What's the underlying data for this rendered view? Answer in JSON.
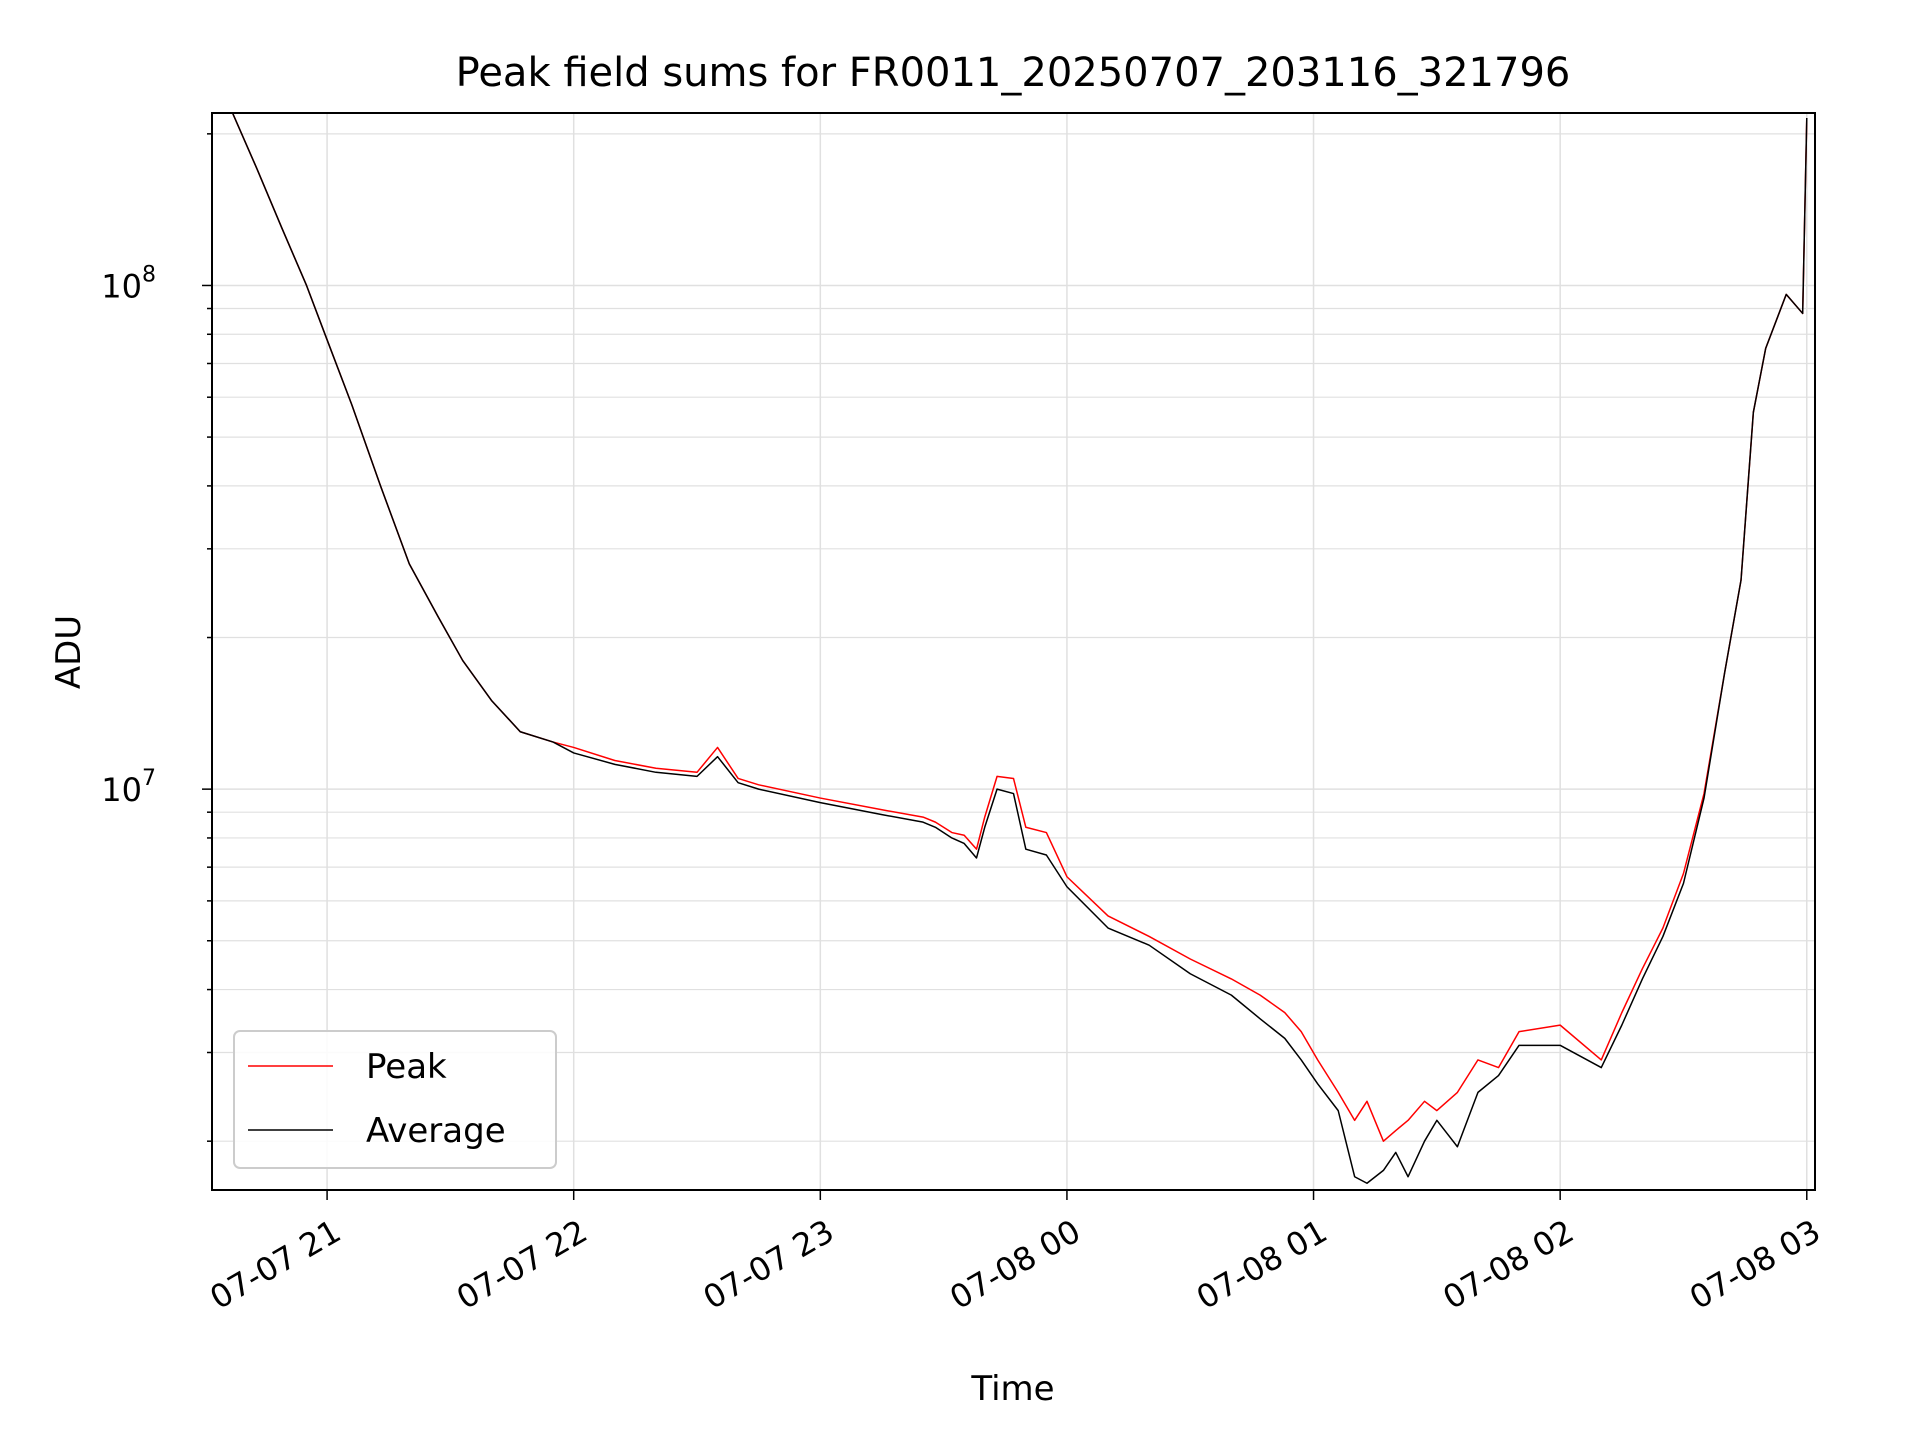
{
  "chart_data": {
    "type": "line",
    "title": "Peak field sums for FR0011_20250707_203116_321796",
    "xlabel": "Time",
    "ylabel": "ADU",
    "y_scale": "log",
    "ylim": [
      1600000,
      220000000
    ],
    "xlim": [
      "07-07 20:32",
      "07-08 03:02"
    ],
    "x_ticks": [
      "07-07 21",
      "07-07 22",
      "07-07 23",
      "07-08 00",
      "07-08 01",
      "07-08 02",
      "07-08 03"
    ],
    "y_ticks": [
      {
        "label": "10",
        "exp": "7",
        "value": 10000000
      },
      {
        "label": "10",
        "exp": "8",
        "value": 100000000
      }
    ],
    "grid": true,
    "legend_position": "lower-left",
    "colors": {
      "peak": "#ff0000",
      "average": "#000000",
      "grid": "#e0e0e0"
    },
    "x": [
      "07-07 20:37",
      "07-07 20:43",
      "07-07 20:49",
      "07-07 20:55",
      "07-07 21:00",
      "07-07 21:06",
      "07-07 21:13",
      "07-07 21:20",
      "07-07 21:27",
      "07-07 21:33",
      "07-07 21:40",
      "07-07 21:47",
      "07-07 21:55",
      "07-07 22:00",
      "07-07 22:10",
      "07-07 22:20",
      "07-07 22:30",
      "07-07 22:35",
      "07-07 22:40",
      "07-07 22:45",
      "07-07 23:00",
      "07-07 23:15",
      "07-07 23:25",
      "07-07 23:28",
      "07-07 23:32",
      "07-07 23:35",
      "07-07 23:38",
      "07-07 23:40",
      "07-07 23:43",
      "07-07 23:47",
      "07-07 23:50",
      "07-07 23:55",
      "07-08 00:00",
      "07-08 00:10",
      "07-08 00:20",
      "07-08 00:30",
      "07-08 00:40",
      "07-08 00:47",
      "07-08 00:53",
      "07-08 00:57",
      "07-08 01:01",
      "07-08 01:06",
      "07-08 01:10",
      "07-08 01:13",
      "07-08 01:17",
      "07-08 01:20",
      "07-08 01:23",
      "07-08 01:27",
      "07-08 01:30",
      "07-08 01:35",
      "07-08 01:40",
      "07-08 01:45",
      "07-08 01:50",
      "07-08 02:00",
      "07-08 02:10",
      "07-08 02:15",
      "07-08 02:20",
      "07-08 02:25",
      "07-08 02:30",
      "07-08 02:35",
      "07-08 02:40",
      "07-08 02:44",
      "07-08 02:47",
      "07-08 02:50",
      "07-08 02:55",
      "07-08 02:59",
      "07-08 03:00"
    ],
    "series": [
      {
        "name": "Peak",
        "values": [
          220000000,
          170000000,
          130000000,
          100000000,
          78000000,
          58000000,
          40000000,
          28000000,
          22000000,
          18000000,
          15000000,
          13000000,
          12400000,
          12100000,
          11400000,
          11000000,
          10800000,
          12100000,
          10500000,
          10200000,
          9600000,
          9100000,
          8800000,
          8600000,
          8200000,
          8100000,
          7600000,
          8800000,
          10600000,
          10500000,
          8400000,
          8200000,
          6700000,
          5600000,
          5100000,
          4600000,
          4200000,
          3900000,
          3600000,
          3300000,
          2900000,
          2500000,
          2200000,
          2400000,
          2000000,
          2100000,
          2200000,
          2400000,
          2300000,
          2500000,
          2900000,
          2800000,
          3300000,
          3400000,
          2900000,
          3600000,
          4400000,
          5300000,
          6800000,
          9800000,
          17000000,
          26000000,
          56000000,
          75000000,
          96000000,
          88000000,
          215000000
        ]
      },
      {
        "name": "Average",
        "values": [
          220000000,
          170000000,
          130000000,
          100000000,
          78000000,
          58000000,
          40000000,
          28000000,
          22000000,
          18000000,
          15000000,
          13000000,
          12400000,
          11800000,
          11200000,
          10800000,
          10600000,
          11600000,
          10300000,
          10000000,
          9400000,
          8900000,
          8600000,
          8400000,
          8000000,
          7800000,
          7300000,
          8400000,
          10000000,
          9800000,
          7600000,
          7400000,
          6400000,
          5300000,
          4900000,
          4300000,
          3900000,
          3500000,
          3200000,
          2900000,
          2600000,
          2300000,
          1700000,
          1650000,
          1750000,
          1900000,
          1700000,
          2000000,
          2200000,
          1950000,
          2500000,
          2700000,
          3100000,
          3100000,
          2800000,
          3400000,
          4200000,
          5100000,
          6500000,
          9600000,
          17000000,
          26000000,
          56000000,
          75000000,
          96000000,
          88000000,
          215000000
        ]
      }
    ]
  }
}
